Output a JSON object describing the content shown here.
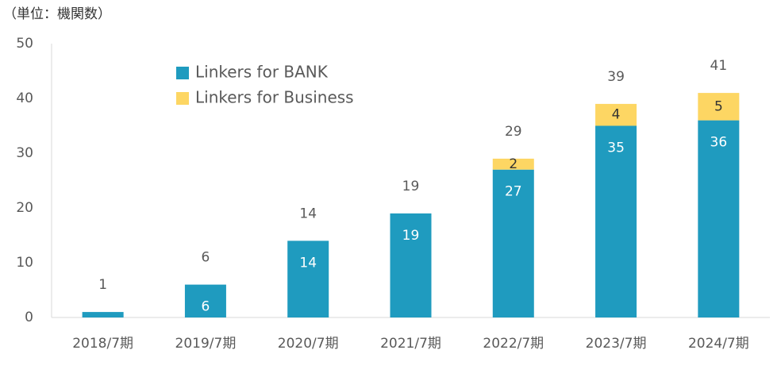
{
  "chart_data": {
    "type": "stacked_bar",
    "unit_label": "（単位：機関数）",
    "categories": [
      "2018/7期",
      "2019/7期",
      "2020/7期",
      "2021/7期",
      "2022/7期",
      "2023/7期",
      "2024/7期"
    ],
    "series": [
      {
        "name": "Linkers for BANK",
        "color": "#1f9bbf",
        "values": [
          1,
          6,
          14,
          19,
          27,
          35,
          36
        ]
      },
      {
        "name": "Linkers for Business",
        "color": "#fdd663",
        "values": [
          null,
          null,
          null,
          null,
          2,
          4,
          5
        ]
      }
    ],
    "totals": [
      1,
      6,
      14,
      19,
      29,
      39,
      41
    ],
    "ylim": [
      0,
      50
    ],
    "yticks": [
      0,
      10,
      20,
      30,
      40,
      50
    ],
    "grid": false
  }
}
